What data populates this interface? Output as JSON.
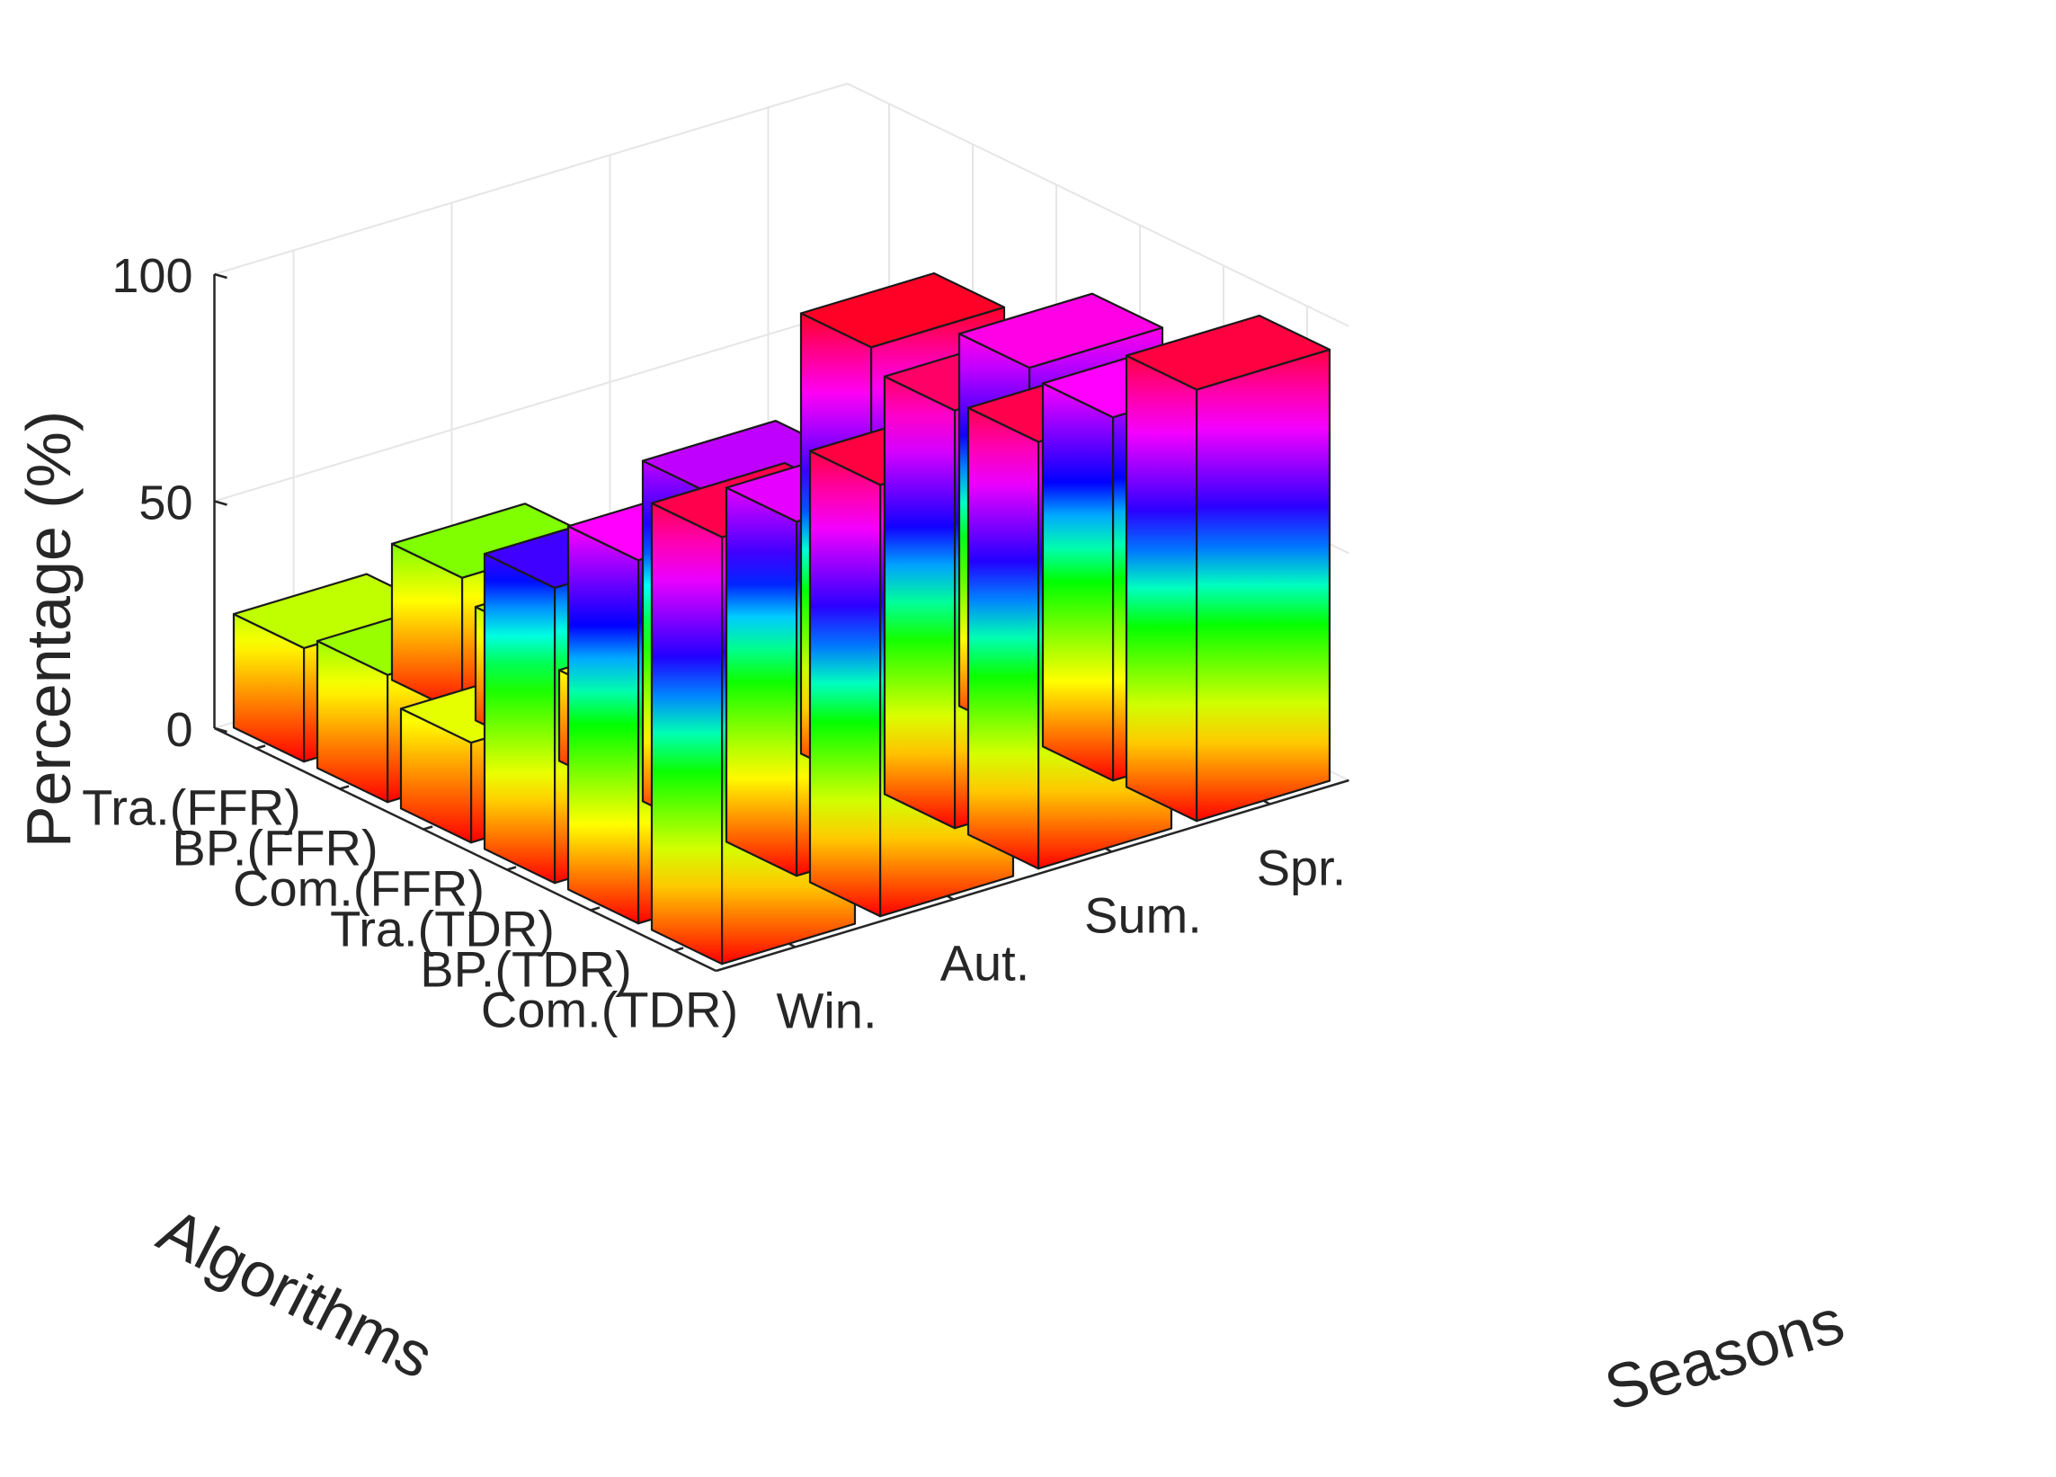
{
  "chart_data": {
    "type": "bar3d",
    "zlabel": "Percentage (%)",
    "xlabel": "Algorithms",
    "ylabel": "Seasons",
    "zlim": [
      0,
      100
    ],
    "zticks": [
      "0",
      "50",
      "100"
    ],
    "algorithms": [
      "Com.(TDR)",
      "BP.(TDR)",
      "Tra.(TDR)",
      "Com.(FFR)",
      "BP.(FFR)",
      "Tra.(FFR)"
    ],
    "seasons": [
      "Win.",
      "Aut.",
      "Sum.",
      "Spr."
    ],
    "series": [
      {
        "name": "Win.",
        "values": [
          94,
          80,
          65,
          22,
          28,
          25
        ]
      },
      {
        "name": "Aut.",
        "values": [
          95,
          78,
          75,
          20,
          25,
          30
        ]
      },
      {
        "name": "Sum.",
        "values": [
          94,
          92,
          97,
          15,
          20,
          13
        ]
      },
      {
        "name": "Spr.",
        "values": [
          95,
          80,
          82,
          12,
          15,
          20
        ]
      }
    ],
    "colormap": [
      "#ff0000",
      "#ff8000",
      "#ffff00",
      "#80ff00",
      "#00ff00",
      "#00ffff",
      "#0000ff",
      "#8000ff",
      "#ff00ff",
      "#ff0080",
      "#ff0000"
    ],
    "grid": true
  }
}
